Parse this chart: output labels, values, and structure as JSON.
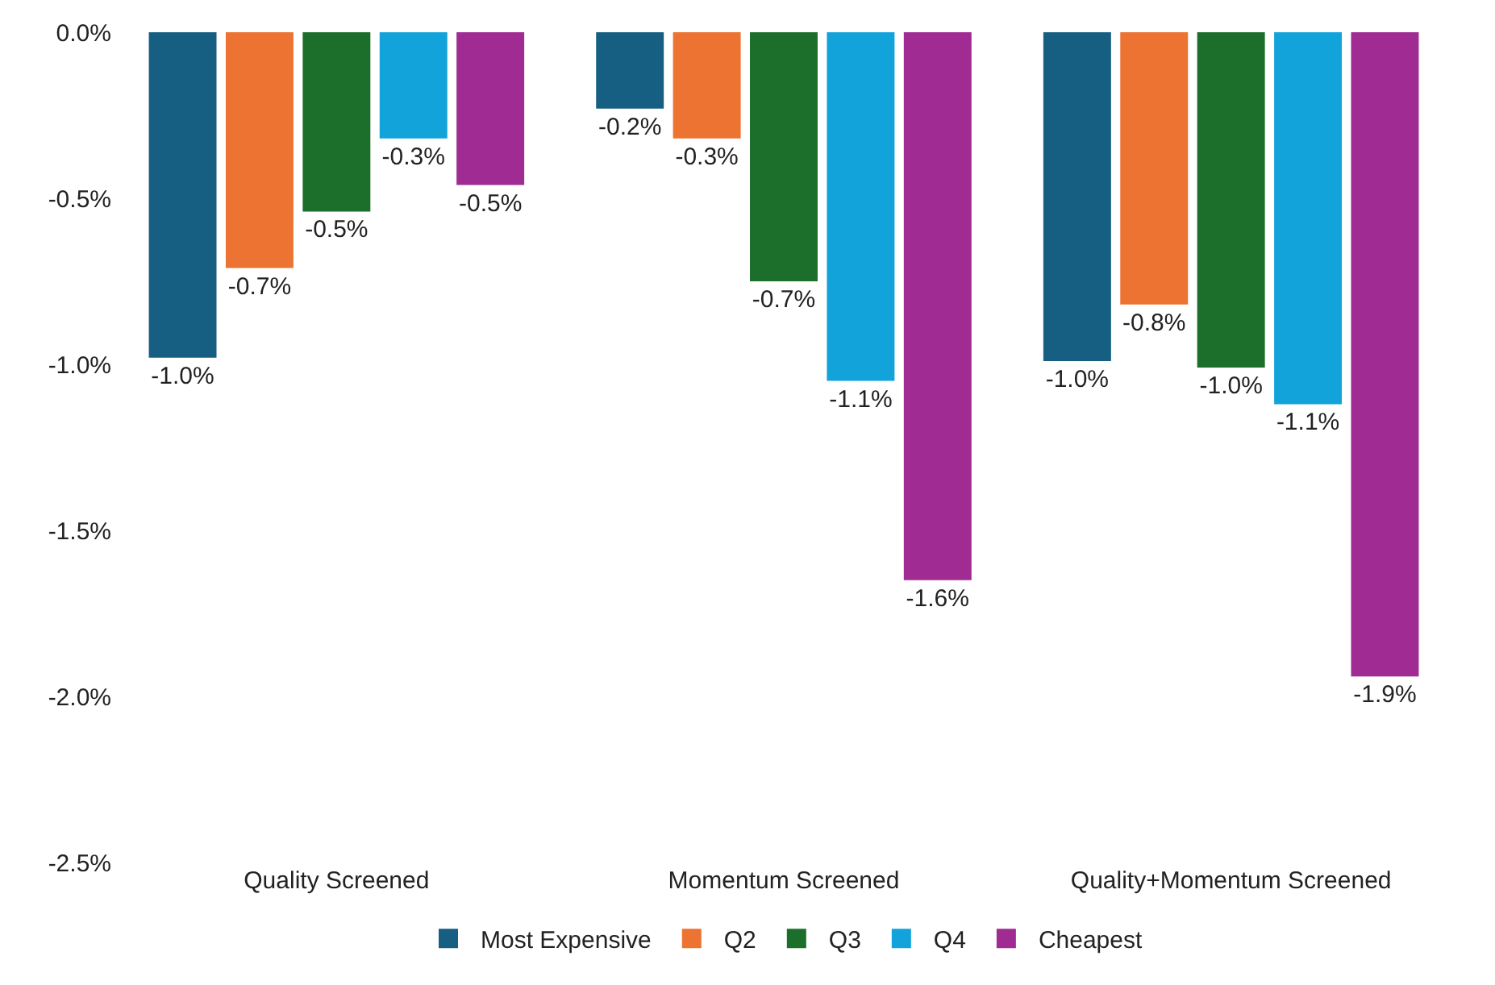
{
  "chart_data": {
    "type": "bar",
    "categories": [
      "Quality Screened",
      "Momentum Screened",
      "Quality+Momentum Screened"
    ],
    "series": [
      {
        "name": "Most Expensive",
        "color": "#175f82",
        "values": [
          -0.98,
          -0.23,
          -0.99
        ],
        "value_labels": [
          "-1.0%",
          "-0.2%",
          "-1.0%"
        ]
      },
      {
        "name": "Q2",
        "color": "#ec7331",
        "values": [
          -0.71,
          -0.32,
          -0.82
        ],
        "value_labels": [
          "-0.7%",
          "-0.3%",
          "-0.8%"
        ]
      },
      {
        "name": "Q3",
        "color": "#1b6f2a",
        "values": [
          -0.54,
          -0.75,
          -1.01
        ],
        "value_labels": [
          "-0.5%",
          "-0.7%",
          "-1.0%"
        ]
      },
      {
        "name": "Q4",
        "color": "#12a3da",
        "values": [
          -0.32,
          -1.05,
          -1.12
        ],
        "value_labels": [
          "-0.3%",
          "-1.1%",
          "-1.1%"
        ]
      },
      {
        "name": "Cheapest",
        "color": "#a02b93",
        "values": [
          -0.46,
          -1.65,
          -1.94
        ],
        "value_labels": [
          "-0.5%",
          "-1.6%",
          "-1.9%"
        ]
      }
    ],
    "ylim": [
      -2.5,
      0
    ],
    "yticks": [
      {
        "value": 0,
        "label": "0.0%"
      },
      {
        "value": -0.5,
        "label": "-0.5%"
      },
      {
        "value": -1,
        "label": "-1.0%"
      },
      {
        "value": -1.5,
        "label": "-1.5%"
      },
      {
        "value": -2,
        "label": "-2.0%"
      },
      {
        "value": -2.5,
        "label": "-2.5%"
      }
    ],
    "grid": false,
    "legend": "bottom"
  }
}
